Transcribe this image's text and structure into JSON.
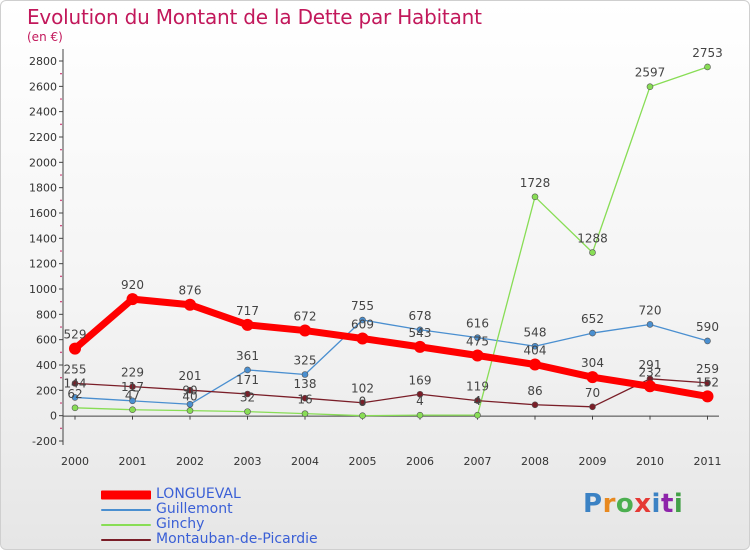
{
  "title": "Evolution du Montant de la Dette par Habitant",
  "unit": "(en €)",
  "logo": {
    "text": "Proxiti",
    "colors": [
      "#3b82c4",
      "#e8891f",
      "#4caf50",
      "#e53935",
      "#3b82c4",
      "#8e24aa",
      "#43a047"
    ]
  },
  "chart_data": {
    "type": "line",
    "title": "Evolution du Montant de la Dette par Habitant",
    "ylabel": "(en €)",
    "x": [
      "2000",
      "2001",
      "2002",
      "2003",
      "2004",
      "2005",
      "2006",
      "2007",
      "2008",
      "2009",
      "2010",
      "2011"
    ],
    "ylim": [
      -200,
      2800
    ],
    "yticks": [
      -200,
      0,
      200,
      400,
      600,
      800,
      1000,
      1200,
      1400,
      1600,
      1800,
      2000,
      2200,
      2400,
      2600,
      2800
    ],
    "grid": false,
    "legend_position": "bottom-left",
    "series": [
      {
        "name": "LONGUEVAL",
        "color": "#ff0000",
        "values": [
          529,
          920,
          876,
          717,
          672,
          609,
          543,
          475,
          404,
          304,
          232,
          152
        ],
        "labels": [
          "529",
          "920",
          "876",
          "717",
          "672",
          "609",
          "543",
          "475",
          "404",
          "304",
          "232",
          "152"
        ]
      },
      {
        "name": "Guillemont",
        "color": "#4a8fd0",
        "values": [
          144,
          117,
          90,
          361,
          325,
          755,
          678,
          616,
          548,
          652,
          720,
          590
        ],
        "labels": [
          "144",
          "117",
          "90",
          "361",
          "325",
          "755",
          "678",
          "616",
          "548",
          "652",
          "720",
          "590"
        ]
      },
      {
        "name": "Ginchy",
        "color": "#88dd55",
        "values": [
          62,
          47,
          40,
          32,
          16,
          0,
          4,
          4,
          1728,
          1288,
          2597,
          2753
        ],
        "labels": [
          "62",
          "47",
          "40",
          "32",
          "16",
          "0",
          "4",
          "4",
          "1728",
          "1288",
          "2597",
          "2753"
        ]
      },
      {
        "name": "Montauban-de-Picardie",
        "color": "#7a1e28",
        "values": [
          255,
          229,
          201,
          171,
          138,
          102,
          169,
          119,
          86,
          70,
          291,
          259
        ],
        "labels": [
          "255",
          "229",
          "201",
          "171",
          "138",
          "102",
          "169",
          "119",
          "86",
          "70",
          "291",
          "259"
        ]
      }
    ]
  }
}
